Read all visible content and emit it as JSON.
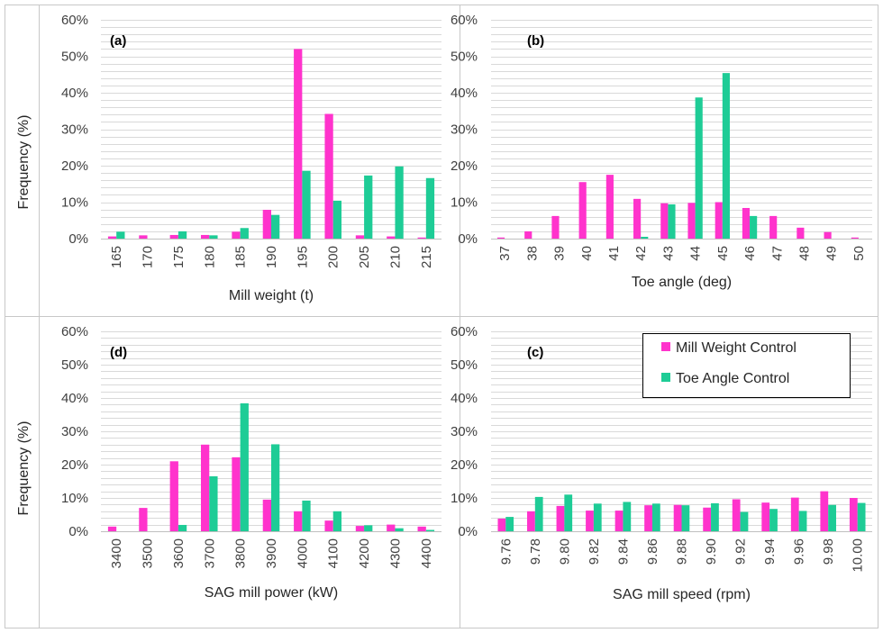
{
  "colors": {
    "series1": "#ff33cc",
    "series2": "#1ecc96",
    "grid": "#d9d9d9",
    "border": "#c8c8c8"
  },
  "y_axis_label": "Frequency (%)",
  "legend": {
    "items": [
      "Mill Weight Control",
      "Toe Angle Control"
    ]
  },
  "chart_data": [
    {
      "id": "a",
      "panel_label": "(a)",
      "type": "bar",
      "xlabel": "Mill weight (t)",
      "ylabel": "Frequency (%)",
      "ylim": [
        0,
        60
      ],
      "y_ticks": [
        "0%",
        "10%",
        "20%",
        "30%",
        "40%",
        "50%",
        "60%"
      ],
      "categories": [
        "165",
        "170",
        "175",
        "180",
        "185",
        "190",
        "195",
        "200",
        "205",
        "210",
        "215"
      ],
      "series": [
        {
          "name": "Mill Weight Control",
          "values": [
            0.6,
            0.9,
            1.0,
            1.0,
            1.9,
            7.9,
            52.0,
            34.2,
            0.9,
            0.6,
            0.3
          ]
        },
        {
          "name": "Toe Angle Control",
          "values": [
            1.9,
            0.0,
            2.0,
            0.9,
            2.9,
            6.5,
            18.6,
            10.4,
            17.3,
            19.8,
            16.6
          ]
        }
      ]
    },
    {
      "id": "b",
      "panel_label": "(b)",
      "type": "bar",
      "xlabel": "Toe angle (deg)",
      "ylabel": "",
      "ylim": [
        0,
        60
      ],
      "y_ticks": [
        "0%",
        "10%",
        "20%",
        "30%",
        "40%",
        "50%",
        "60%"
      ],
      "categories": [
        "37",
        "38",
        "39",
        "40",
        "41",
        "42",
        "43",
        "44",
        "45",
        "46",
        "47",
        "48",
        "49",
        "50"
      ],
      "series": [
        {
          "name": "Mill Weight Control",
          "values": [
            0.3,
            2.0,
            6.2,
            15.5,
            17.5,
            10.9,
            9.7,
            9.8,
            10.0,
            8.4,
            6.2,
            3.0,
            1.8,
            0.3
          ]
        },
        {
          "name": "Toe Angle Control",
          "values": [
            0.0,
            0.0,
            0.0,
            0.0,
            0.0,
            0.5,
            9.4,
            38.7,
            45.4,
            6.2,
            0.0,
            0.0,
            0.0,
            0.0
          ]
        }
      ]
    },
    {
      "id": "d",
      "panel_label": "(d)",
      "type": "bar",
      "xlabel": "SAG mill power (kW)",
      "ylabel": "Frequency (%)",
      "ylim": [
        0,
        60
      ],
      "y_ticks": [
        "0%",
        "10%",
        "20%",
        "30%",
        "40%",
        "50%",
        "60%"
      ],
      "categories": [
        "3400",
        "3500",
        "3600",
        "3700",
        "3800",
        "3900",
        "4000",
        "4100",
        "4200",
        "4300",
        "4400"
      ],
      "series": [
        {
          "name": "Mill Weight Control",
          "values": [
            1.4,
            7.0,
            21.0,
            26.0,
            22.2,
            9.5,
            6.0,
            3.2,
            1.6,
            2.0,
            1.4
          ]
        },
        {
          "name": "Toe Angle Control",
          "values": [
            0.0,
            0.0,
            1.9,
            16.5,
            38.4,
            26.1,
            9.2,
            6.0,
            1.8,
            0.9,
            0.4
          ]
        }
      ]
    },
    {
      "id": "c",
      "panel_label": "(c)",
      "type": "bar",
      "xlabel": "SAG mill speed (rpm)",
      "ylabel": "",
      "ylim": [
        0,
        60
      ],
      "y_ticks": [
        "0%",
        "10%",
        "20%",
        "30%",
        "40%",
        "50%",
        "60%"
      ],
      "legend_position": "top-right",
      "categories": [
        "9.76",
        "9.78",
        "9.80",
        "9.82",
        "9.84",
        "9.86",
        "9.88",
        "9.90",
        "9.92",
        "9.94",
        "9.96",
        "9.98",
        "10.00"
      ],
      "series": [
        {
          "name": "Mill Weight Control",
          "values": [
            3.8,
            6.0,
            7.6,
            6.2,
            6.2,
            7.8,
            7.9,
            7.1,
            9.6,
            8.6,
            10.1,
            12.0,
            10.0
          ]
        },
        {
          "name": "Toe Angle Control",
          "values": [
            4.3,
            10.3,
            11.0,
            8.3,
            8.8,
            8.3,
            7.8,
            8.4,
            5.8,
            6.7,
            6.1,
            7.9,
            8.5
          ]
        }
      ]
    }
  ]
}
